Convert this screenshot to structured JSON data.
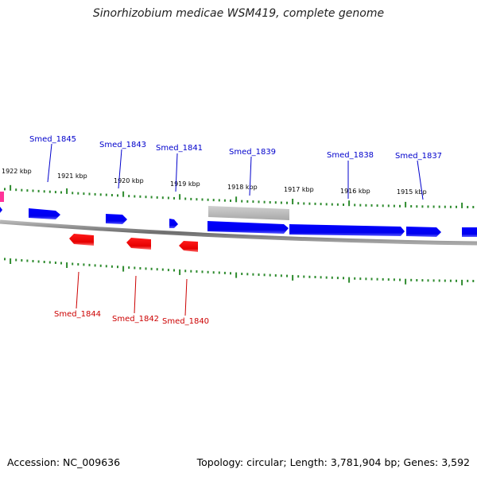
{
  "title": "Sinorhizobium medicae WSM419, complete genome",
  "footer": {
    "accession": "Accession: NC_009636",
    "summary": "Topology: circular; Length: 3,781,904 bp; Genes: 3,592"
  },
  "colors": {
    "forward_gene": "#0000ff",
    "reverse_gene": "#ff0000",
    "other_feature": "#c0c0c0",
    "pink_feature": "#ff3399",
    "tick": "#2e8b2e",
    "backbone": "#8a8a8a"
  },
  "scale_labels": [
    "1922 kbp",
    "1921 kbp",
    "1920 kbp",
    "1919 kbp",
    "1918 kbp",
    "1917 kbp",
    "1916 kbp",
    "1915 kbp"
  ],
  "forward_gene_labels": [
    "Smed_1845",
    "Smed_1843",
    "Smed_1841",
    "Smed_1839",
    "Smed_1838",
    "Smed_1837"
  ],
  "reverse_gene_labels": [
    "Smed_1844",
    "Smed_1842",
    "Smed_1840"
  ]
}
